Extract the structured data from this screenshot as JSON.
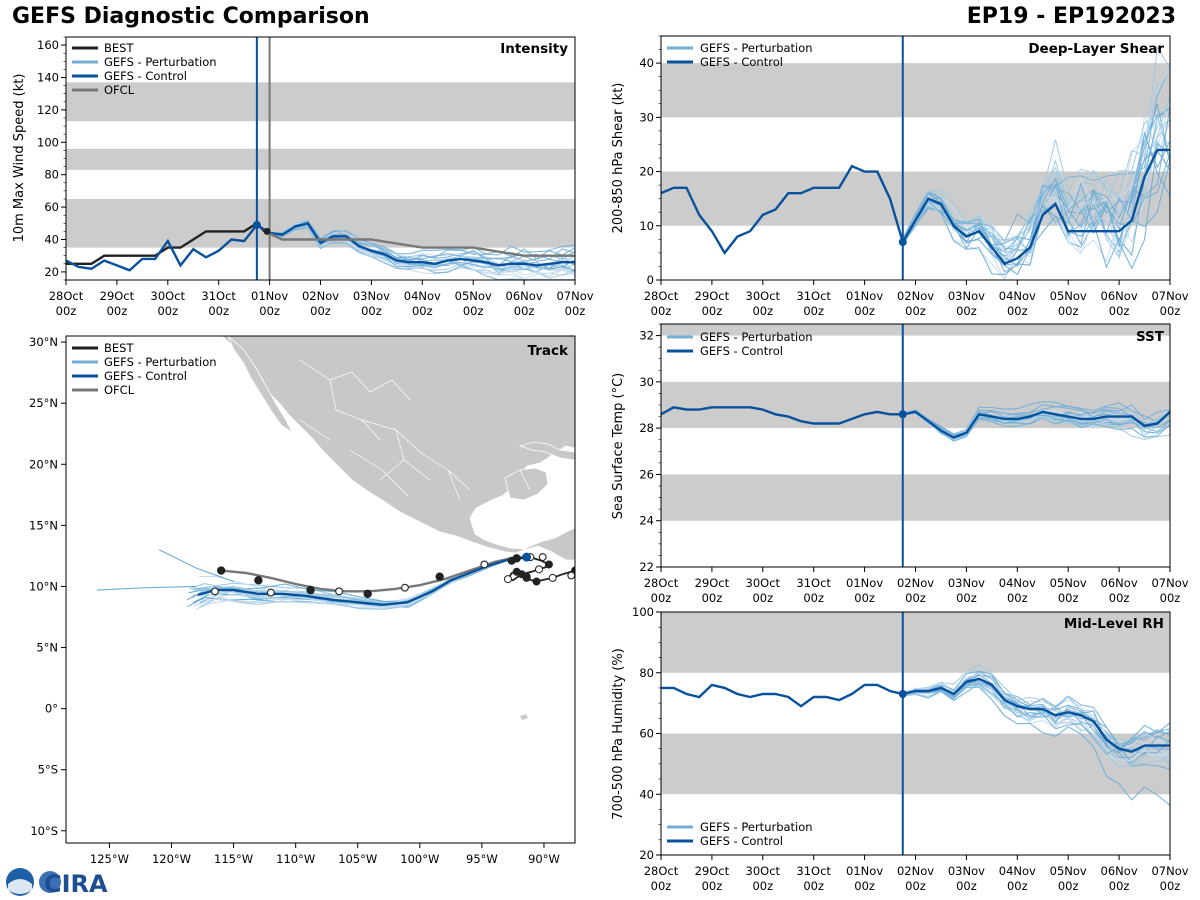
{
  "header": {
    "title": "GEFS Diagnostic Comparison",
    "storm": "EP19 - EP192023"
  },
  "logo": {
    "text": "CIRA"
  },
  "colors": {
    "best": "#222222",
    "perturbation": "#74add6",
    "control": "#08519c",
    "ofcl": "#777777",
    "band": "#cccccc",
    "land": "#c8c8c8"
  },
  "time_axis": {
    "ticks": [
      {
        "l1": "28Oct",
        "l2": "00z"
      },
      {
        "l1": "29Oct",
        "l2": "00z"
      },
      {
        "l1": "30Oct",
        "l2": "00z"
      },
      {
        "l1": "31Oct",
        "l2": "00z"
      },
      {
        "l1": "01Nov",
        "l2": "00z"
      },
      {
        "l1": "02Nov",
        "l2": "00z"
      },
      {
        "l1": "03Nov",
        "l2": "00z"
      },
      {
        "l1": "04Nov",
        "l2": "00z"
      },
      {
        "l1": "05Nov",
        "l2": "00z"
      },
      {
        "l1": "06Nov",
        "l2": "00z"
      },
      {
        "l1": "07Nov",
        "l2": "00z"
      }
    ]
  },
  "chart_data": [
    {
      "id": "intensity",
      "type": "line",
      "title": "Intensity",
      "ylabel": "10m Max Wind Speed (kt)",
      "xlim": [
        0,
        10
      ],
      "ylim": [
        15,
        165
      ],
      "yticks": [
        20,
        40,
        60,
        80,
        100,
        120,
        140,
        160
      ],
      "bands": [
        [
          35,
          65
        ],
        [
          83,
          96
        ],
        [
          113,
          137
        ]
      ],
      "init_day": 3.75,
      "ofcl_line": 4.0,
      "legend": [
        "BEST",
        "GEFS - Perturbation",
        "GEFS - Control",
        "OFCL"
      ],
      "series": [
        {
          "name": "BEST",
          "x": [
            0,
            0.25,
            0.5,
            0.75,
            1,
            1.25,
            1.5,
            1.75,
            2,
            2.25,
            2.5,
            2.75,
            3,
            3.25,
            3.5,
            3.75,
            3.9
          ],
          "y": [
            25,
            25,
            25,
            30,
            30,
            30,
            30,
            30,
            35,
            35,
            40,
            45,
            45,
            45,
            45,
            50,
            45
          ]
        },
        {
          "name": "GEFS - Control",
          "x": [
            0,
            0.25,
            0.5,
            0.75,
            1,
            1.25,
            1.5,
            1.75,
            2,
            2.25,
            2.5,
            2.75,
            3,
            3.25,
            3.5,
            3.75,
            4,
            4.25,
            4.5,
            4.75,
            5,
            5.25,
            5.5,
            5.75,
            6,
            6.25,
            6.5,
            6.75,
            7,
            7.25,
            7.5,
            7.75,
            8,
            8.25,
            8.5,
            8.75,
            9,
            9.25,
            9.5,
            9.75,
            10
          ],
          "y": [
            27,
            23,
            22,
            27,
            24,
            21,
            28,
            28,
            39,
            24,
            34,
            29,
            33,
            40,
            39,
            49,
            44,
            43,
            48,
            50,
            38,
            42,
            42,
            36,
            33,
            31,
            27,
            26,
            26,
            25,
            27,
            28,
            27,
            26,
            24,
            25,
            25,
            24,
            25,
            26,
            26
          ]
        },
        {
          "name": "OFCL",
          "x": [
            3.9,
            4.25,
            5,
            6,
            7,
            8,
            9,
            10
          ],
          "y": [
            45,
            40,
            40,
            40,
            35,
            35,
            30,
            30
          ]
        }
      ]
    },
    {
      "id": "shear",
      "type": "line",
      "title": "Deep-Layer Shear",
      "ylabel": "200-850 hPa Shear (kt)",
      "xlim": [
        0,
        10
      ],
      "ylim": [
        0,
        45
      ],
      "yticks": [
        0,
        10,
        20,
        30,
        40
      ],
      "bands": [
        [
          10,
          20
        ],
        [
          30,
          40
        ]
      ],
      "init_day": 4.75,
      "legend": [
        "GEFS - Perturbation",
        "GEFS - Control"
      ],
      "series": [
        {
          "name": "GEFS - Control",
          "x": [
            0,
            0.25,
            0.5,
            0.75,
            1,
            1.25,
            1.5,
            1.75,
            2,
            2.25,
            2.5,
            2.75,
            3,
            3.25,
            3.5,
            3.75,
            4,
            4.25,
            4.5,
            4.75,
            5,
            5.25,
            5.5,
            5.75,
            6,
            6.25,
            6.5,
            6.75,
            7,
            7.25,
            7.5,
            7.75,
            8,
            8.25,
            8.5,
            8.75,
            9,
            9.25,
            9.5,
            9.75,
            10
          ],
          "y": [
            16,
            17,
            17,
            12,
            9,
            5,
            8,
            9,
            12,
            13,
            16,
            16,
            17,
            17,
            17,
            21,
            20,
            20,
            15,
            7,
            11,
            15,
            14,
            10,
            8,
            9,
            6,
            3,
            4,
            6,
            12,
            14,
            9,
            9,
            9,
            9,
            9,
            11,
            19,
            24,
            24
          ]
        }
      ]
    },
    {
      "id": "sst",
      "type": "line",
      "title": "SST",
      "ylabel": "Sea Surface Temp (°C)",
      "xlim": [
        0,
        10
      ],
      "ylim": [
        22,
        32.5
      ],
      "yticks": [
        22,
        24,
        26,
        28,
        30,
        32
      ],
      "bands": [
        [
          24,
          26
        ],
        [
          28,
          30
        ],
        [
          32,
          32.5
        ]
      ],
      "init_day": 4.75,
      "legend": [
        "GEFS - Perturbation",
        "GEFS - Control"
      ],
      "series": [
        {
          "name": "GEFS - Control",
          "x": [
            0,
            0.25,
            0.5,
            0.75,
            1,
            1.25,
            1.5,
            1.75,
            2,
            2.25,
            2.5,
            2.75,
            3,
            3.25,
            3.5,
            3.75,
            4,
            4.25,
            4.5,
            4.75,
            5,
            5.25,
            5.5,
            5.75,
            6,
            6.25,
            6.5,
            6.75,
            7,
            7.25,
            7.5,
            7.75,
            8,
            8.25,
            8.5,
            8.75,
            9,
            9.25,
            9.5,
            9.75,
            10
          ],
          "y": [
            28.6,
            28.9,
            28.8,
            28.8,
            28.9,
            28.9,
            28.9,
            28.9,
            28.8,
            28.6,
            28.5,
            28.3,
            28.2,
            28.2,
            28.2,
            28.4,
            28.6,
            28.7,
            28.6,
            28.6,
            28.7,
            28.3,
            27.9,
            27.6,
            27.8,
            28.6,
            28.5,
            28.4,
            28.4,
            28.5,
            28.7,
            28.6,
            28.5,
            28.4,
            28.4,
            28.5,
            28.5,
            28.5,
            28.1,
            28.2,
            28.7
          ]
        }
      ]
    },
    {
      "id": "rh",
      "type": "line",
      "title": "Mid-Level RH",
      "ylabel": "700-500 hPa Humidity (%)",
      "xlim": [
        0,
        10
      ],
      "ylim": [
        20,
        100
      ],
      "yticks": [
        20,
        40,
        60,
        80,
        100
      ],
      "bands": [
        [
          40,
          60
        ],
        [
          80,
          100
        ]
      ],
      "init_day": 4.75,
      "legend": [
        "GEFS - Perturbation",
        "GEFS - Control"
      ],
      "series": [
        {
          "name": "GEFS - Control",
          "x": [
            0,
            0.25,
            0.5,
            0.75,
            1,
            1.25,
            1.5,
            1.75,
            2,
            2.25,
            2.5,
            2.75,
            3,
            3.25,
            3.5,
            3.75,
            4,
            4.25,
            4.5,
            4.75,
            5,
            5.25,
            5.5,
            5.75,
            6,
            6.25,
            6.5,
            6.75,
            7,
            7.25,
            7.5,
            7.75,
            8,
            8.25,
            8.5,
            8.75,
            9,
            9.25,
            9.5,
            9.75,
            10
          ],
          "y": [
            75,
            75,
            73,
            72,
            76,
            75,
            73,
            72,
            73,
            73,
            72,
            69,
            72,
            72,
            71,
            73,
            76,
            76,
            74,
            73,
            74,
            74,
            75,
            73,
            77,
            78,
            76,
            71,
            69,
            68,
            68,
            66,
            67,
            66,
            64,
            58,
            55,
            54,
            56,
            56,
            56
          ]
        }
      ]
    },
    {
      "id": "track",
      "type": "scatter",
      "title": "Track",
      "xlim": [
        -128.5,
        -87.5
      ],
      "ylim": [
        -11,
        30.5
      ],
      "xticks": [
        {
          "v": -125,
          "label": "125°W"
        },
        {
          "v": -120,
          "label": "120°W"
        },
        {
          "v": -115,
          "label": "115°W"
        },
        {
          "v": -110,
          "label": "110°W"
        },
        {
          "v": -105,
          "label": "105°W"
        },
        {
          "v": -100,
          "label": "100°W"
        },
        {
          "v": -95,
          "label": "95°W"
        },
        {
          "v": -90,
          "label": "90°W"
        }
      ],
      "yticks": [
        {
          "v": -10,
          "label": "10°S"
        },
        {
          "v": -5,
          "label": "5°S"
        },
        {
          "v": 0,
          "label": "0°"
        },
        {
          "v": 5,
          "label": "5°N"
        },
        {
          "v": 10,
          "label": "10°N"
        },
        {
          "v": 15,
          "label": "15°N"
        },
        {
          "v": 20,
          "label": "20°N"
        },
        {
          "v": 25,
          "label": "25°N"
        },
        {
          "v": 30,
          "label": "30°N"
        }
      ],
      "legend": [
        "BEST",
        "GEFS - Perturbation",
        "GEFS - Control",
        "OFCL"
      ],
      "series": [
        {
          "name": "BEST",
          "lon": [
            -87.5,
            -88.5,
            -89.3,
            -90.2,
            -90.6,
            -91.0,
            -91.4,
            -91.7,
            -92.2,
            -92.6,
            -92.9,
            -92.5,
            -91.8,
            -91.0,
            -90.4,
            -89.8,
            -89.6,
            -90.2,
            -91.1,
            -91.9,
            -92.6
          ],
          "lat": [
            11.3,
            11.0,
            10.7,
            10.5,
            10.4,
            10.5,
            10.7,
            10.9,
            11.2,
            11.1,
            10.6,
            10.5,
            11.0,
            11.2,
            11.4,
            11.6,
            11.8,
            12.1,
            12.4,
            12.3,
            12.1
          ]
        },
        {
          "name": "GEFS - Control",
          "lon": [
            -117.9,
            -116.5,
            -115,
            -113,
            -111,
            -109,
            -107,
            -105,
            -103,
            -101,
            -99,
            -97.5,
            -96,
            -94.5,
            -93.5,
            -92.5,
            -91.4
          ],
          "lat": [
            9.3,
            9.7,
            9.7,
            9.4,
            9.4,
            9.2,
            8.9,
            8.7,
            8.5,
            8.7,
            9.6,
            10.5,
            11.1,
            11.7,
            12.0,
            12.3,
            12.4
          ]
        },
        {
          "name": "OFCL",
          "lon": [
            -92.2,
            -94.0,
            -96.0,
            -98.0,
            -100.0,
            -102.0,
            -104.0,
            -106.0,
            -108.0,
            -110.0,
            -112.0,
            -114.0,
            -116.0
          ],
          "lat": [
            12.4,
            12.0,
            11.3,
            10.6,
            10.1,
            9.8,
            9.6,
            9.6,
            9.8,
            10.2,
            10.7,
            11.1,
            11.3
          ]
        },
        {
          "name": "BEST_filled_markers",
          "lon": [
            -116.0,
            -113.0,
            -108.8,
            -104.2,
            -98.4,
            -92.2,
            -91.4
          ],
          "lat": [
            11.3,
            10.5,
            9.7,
            9.4,
            10.8,
            12.3,
            10.8
          ]
        },
        {
          "name": "open_markers",
          "lon": [
            -116.5,
            -112.0,
            -106.5,
            -101.2,
            -94.8,
            -90.1,
            -87.8
          ],
          "lat": [
            9.6,
            9.5,
            9.6,
            9.9,
            11.8,
            12.4,
            10.9
          ]
        }
      ]
    }
  ]
}
